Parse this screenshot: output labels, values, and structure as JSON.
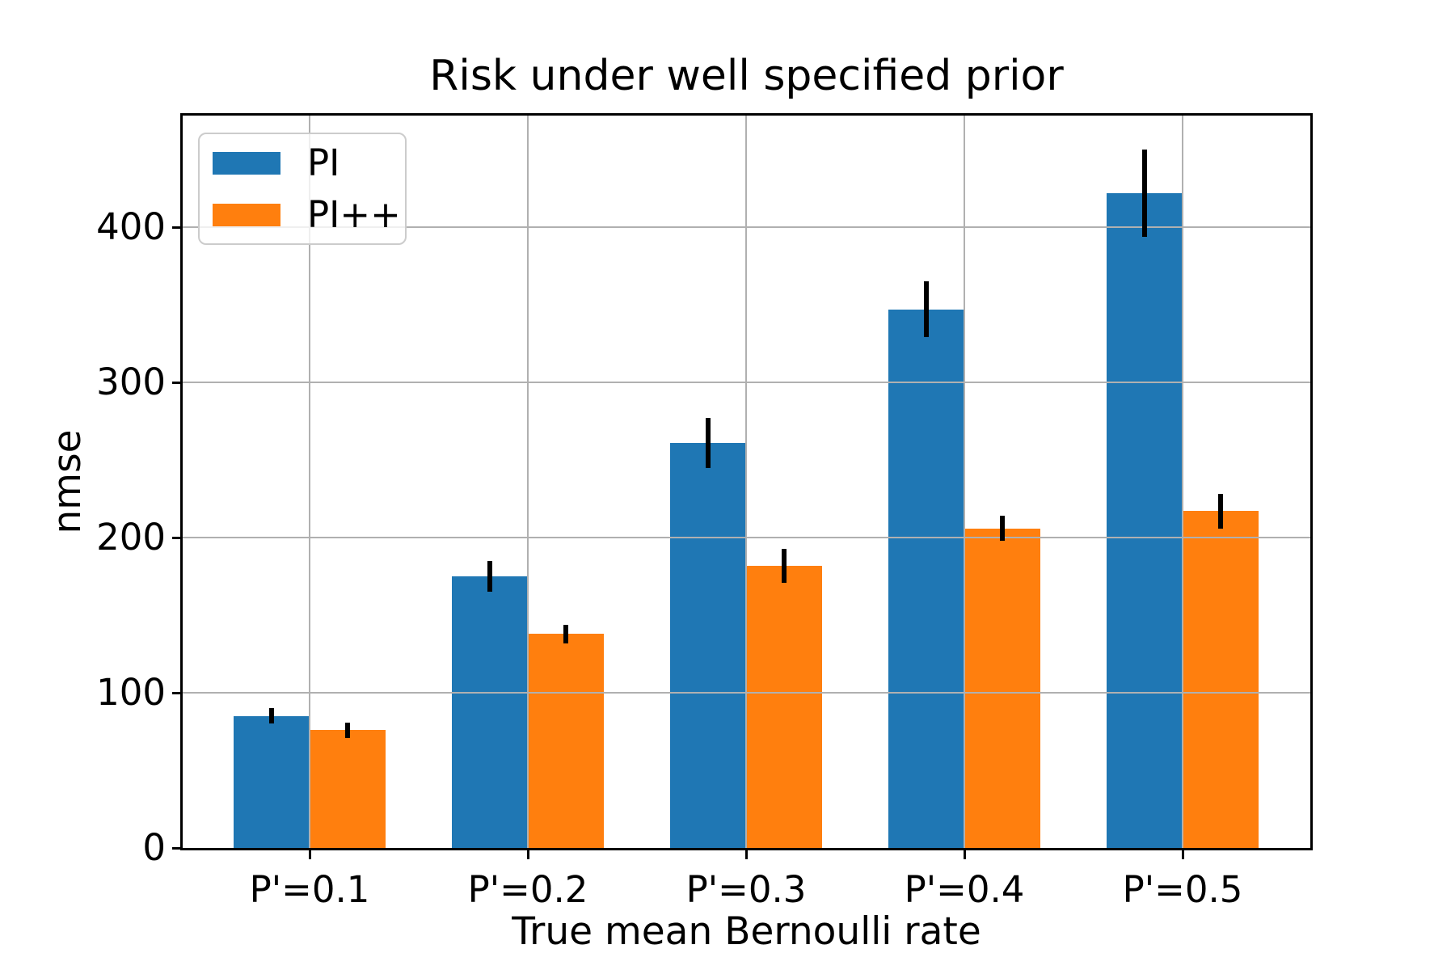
{
  "chart_data": {
    "type": "bar",
    "title": "Risk under well specified prior",
    "xlabel": "True mean Bernoulli rate",
    "ylabel": "nmse",
    "categories": [
      "P'=0.1",
      "P'=0.2",
      "P'=0.3",
      "P'=0.4",
      "P'=0.5"
    ],
    "series": [
      {
        "name": "PI",
        "color": "#1f77b4",
        "values": [
          85,
          175,
          261,
          347,
          422
        ],
        "errors": [
          5,
          10,
          16,
          18,
          28
        ]
      },
      {
        "name": "PI++",
        "color": "#ff7f0e",
        "values": [
          76,
          138,
          182,
          206,
          217
        ],
        "errors": [
          5,
          6,
          11,
          8,
          11
        ]
      }
    ],
    "yticks": [
      0,
      100,
      200,
      300,
      400
    ],
    "ylim": [
      0,
      472
    ],
    "grid": true,
    "legend_position": "upper left",
    "error_bars": true,
    "colors": {
      "grid": "#b0b0b0",
      "spine": "#000000",
      "errorbar": "#000000",
      "background": "#ffffff",
      "text": "#000000",
      "legend_border": "#cccccc"
    }
  }
}
